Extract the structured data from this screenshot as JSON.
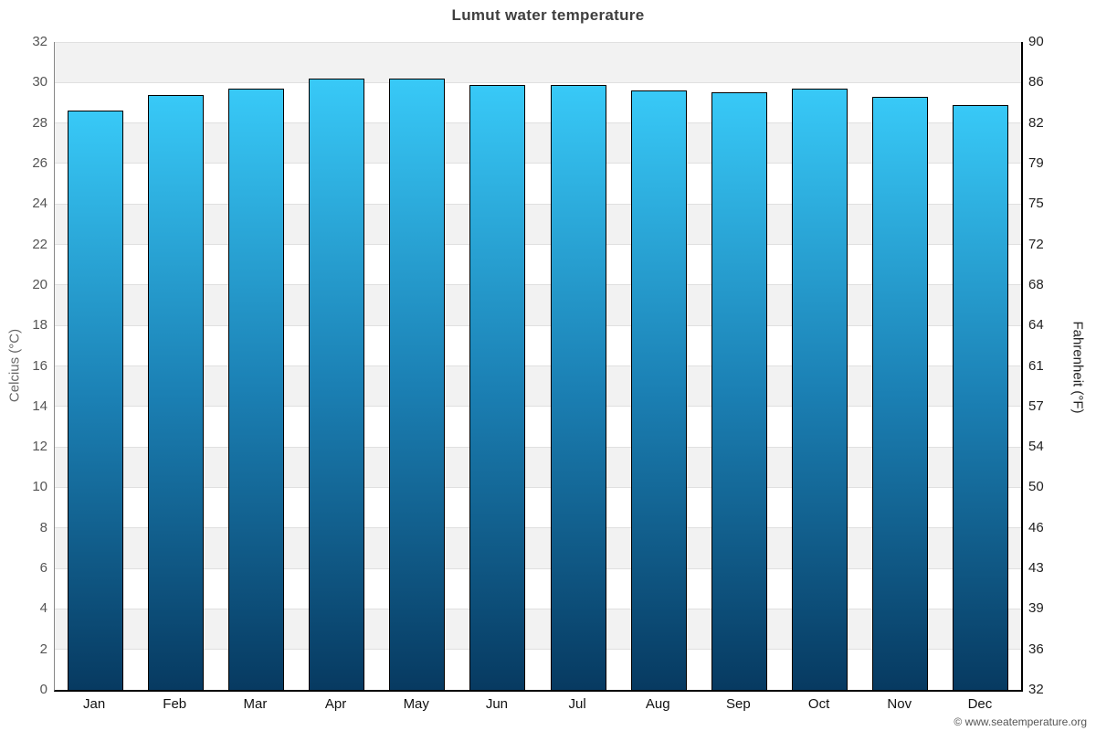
{
  "title": "Lumut water temperature",
  "credit": "© www.seatemperature.org",
  "chart_data": {
    "type": "bar",
    "title": "Lumut water temperature",
    "categories": [
      "Jan",
      "Feb",
      "Mar",
      "Apr",
      "May",
      "Jun",
      "Jul",
      "Aug",
      "Sep",
      "Oct",
      "Nov",
      "Dec"
    ],
    "values": [
      28.6,
      29.4,
      29.7,
      30.2,
      30.2,
      29.9,
      29.9,
      29.6,
      29.5,
      29.7,
      29.3,
      28.9
    ],
    "ylabel_left": "Celcius (°C)",
    "ylabel_right": "Fahrenheit (°F)",
    "yticks_left": [
      0,
      2,
      4,
      6,
      8,
      10,
      12,
      14,
      16,
      18,
      20,
      22,
      24,
      26,
      28,
      30,
      32
    ],
    "yticks_right": [
      32,
      36,
      39,
      43,
      46,
      50,
      54,
      57,
      61,
      64,
      68,
      72,
      75,
      79,
      82,
      86,
      90
    ],
    "ylim": [
      0,
      32
    ],
    "grid": "on",
    "legend": "none",
    "colors": {
      "bar_top": "#38c9f7",
      "bar_mid": "#1b80b4",
      "bar_bottom": "#073a61",
      "bar_border": "#000000",
      "band": "#f2f2f2",
      "gridline": "#e0e0e0",
      "title_text": "#3f3f3f",
      "left_tick_text": "#555555",
      "right_tick_text": "#222222"
    }
  }
}
